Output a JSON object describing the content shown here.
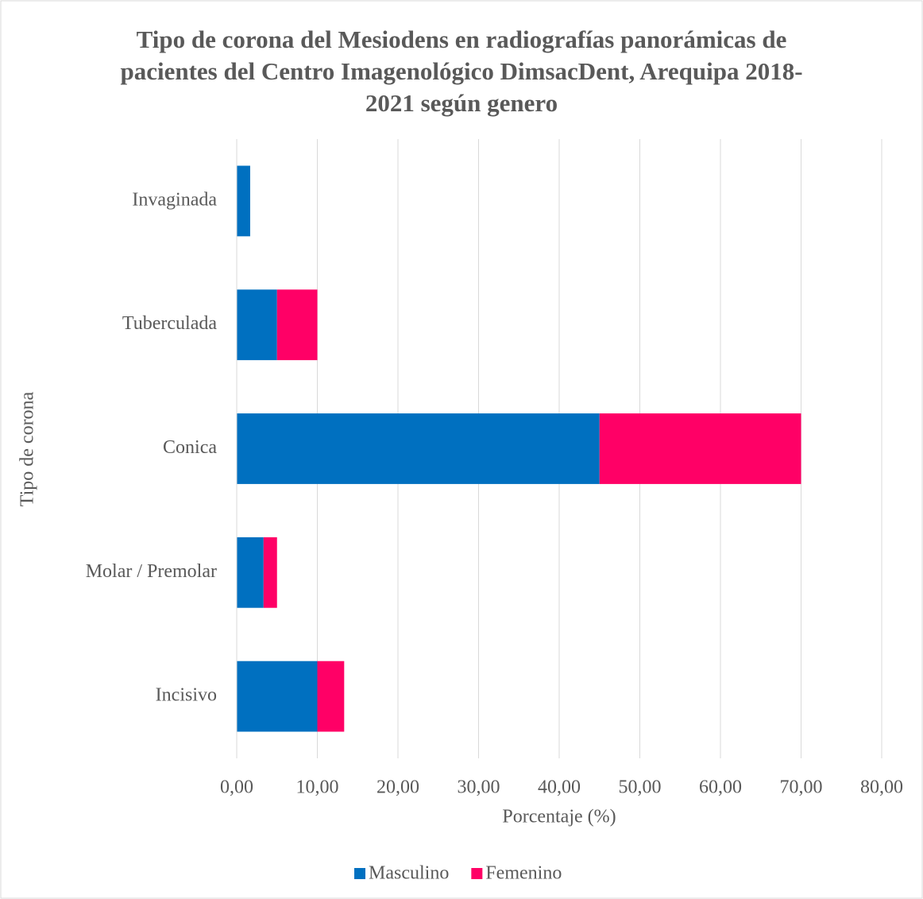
{
  "chart_data": {
    "type": "hbar_stacked",
    "title": "Tipo de corona del Mesiodens en radiografías panorámicas de pacientes del Centro Imagenológico DimsacDent, Arequipa 2018-2021 según genero",
    "x_label": "Porcentaje (%)",
    "y_label": "Tipo de corona",
    "categories": [
      "Invaginada",
      "Tuberculada",
      "Conica",
      "Molar / Premolar",
      "Incisivo"
    ],
    "series": [
      {
        "name": "Masculino",
        "color": "#0070c0",
        "values": [
          1.67,
          5,
          45,
          3.33,
          10
        ]
      },
      {
        "name": "Femenino",
        "color": "#ff0066",
        "values": [
          0,
          5,
          25,
          1.67,
          3.33
        ]
      }
    ],
    "xlim": [
      0,
      80
    ],
    "xticks": [
      {
        "value": 0,
        "label": "0,00"
      },
      {
        "value": 10,
        "label": "10,00"
      },
      {
        "value": 20,
        "label": "20,00"
      },
      {
        "value": 30,
        "label": "30,00"
      },
      {
        "value": 40,
        "label": "40,00"
      },
      {
        "value": 50,
        "label": "50,00"
      },
      {
        "value": 60,
        "label": "60,00"
      },
      {
        "value": 70,
        "label": "70,00"
      },
      {
        "value": 80,
        "label": "80,00"
      }
    ],
    "grid": true,
    "legend": "bottom"
  }
}
